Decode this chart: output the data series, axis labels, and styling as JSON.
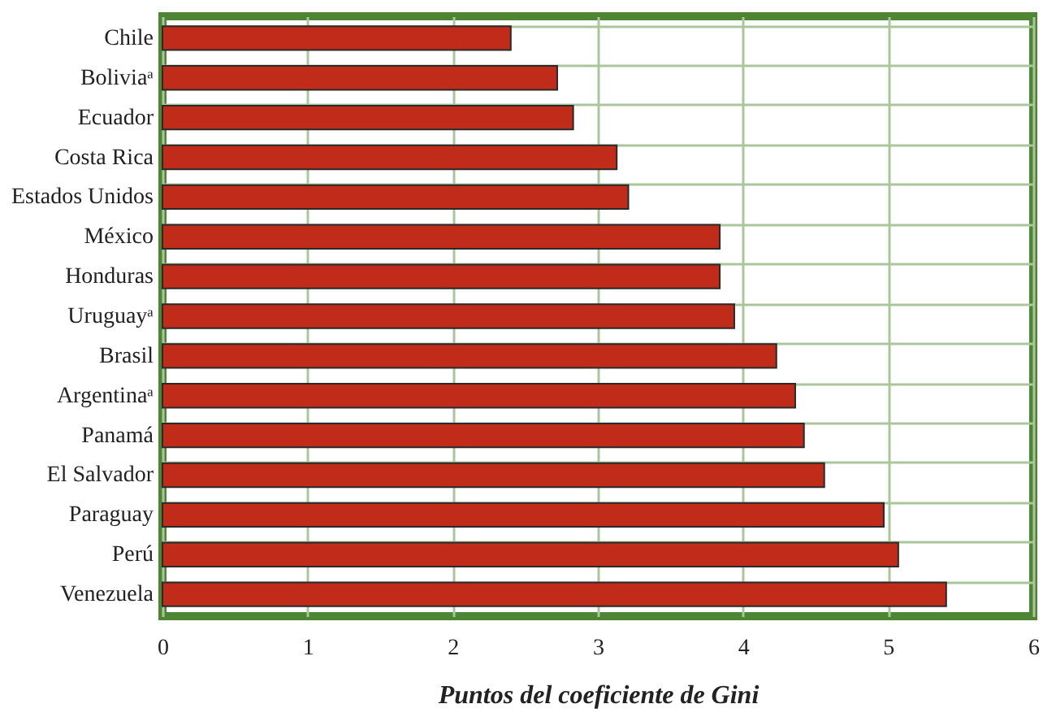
{
  "chart_data": {
    "type": "bar",
    "orientation": "horizontal",
    "xlabel": "Puntos del coeficiente de Gini",
    "categories": [
      "Chile",
      "Boliviaᵃ",
      "Ecuador",
      "Costa Rica",
      "Estados Unidos",
      "México",
      "Honduras",
      "Uruguayᵃ",
      "Brasil",
      "Argentinaᵃ",
      "Panamá",
      "El Salvador",
      "Paraguay",
      "Perú",
      "Venezuela"
    ],
    "values": [
      2.4,
      2.72,
      2.83,
      3.13,
      3.21,
      3.84,
      3.84,
      3.94,
      4.23,
      4.36,
      4.42,
      4.56,
      4.97,
      5.07,
      5.4
    ],
    "color": "#c02b1a",
    "xlim": [
      0,
      6
    ],
    "xticks": [
      0,
      1,
      2,
      3,
      4,
      5,
      6
    ],
    "grid": true
  }
}
